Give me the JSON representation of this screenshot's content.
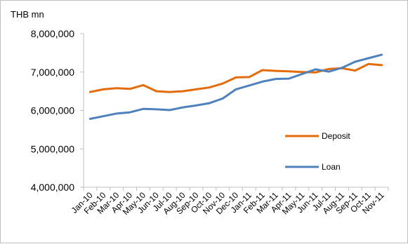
{
  "chart_data": {
    "type": "line",
    "unit_label": "THB mn",
    "categories": [
      "Jan-10",
      "Feb-10",
      "Mar-10",
      "Apr-10",
      "May-10",
      "Jun-10",
      "Jul-10",
      "Aug-10",
      "Sep-10",
      "Oct-10",
      "Nov-10",
      "Dec-10",
      "Jan-11",
      "Feb-11",
      "Mar-11",
      "Apr-11",
      "May-11",
      "Jun-11",
      "Jul-11",
      "Aug-11",
      "Sep-11",
      "Oct-11",
      "Nov-11"
    ],
    "y_ticks": [
      "4,000,000",
      "5,000,000",
      "6,000,000",
      "7,000,000",
      "8,000,000"
    ],
    "ylim": [
      4000000,
      8000000
    ],
    "grid": false,
    "legend_position": "right",
    "series": [
      {
        "name": "Deposit",
        "color": "#e36c0a",
        "values": [
          6480000,
          6550000,
          6580000,
          6560000,
          6660000,
          6500000,
          6480000,
          6500000,
          6550000,
          6600000,
          6700000,
          6860000,
          6870000,
          7050000,
          7030000,
          7020000,
          7000000,
          6990000,
          7080000,
          7100000,
          7040000,
          7210000,
          7180000
        ]
      },
      {
        "name": "Loan",
        "color": "#4f81bd",
        "values": [
          5780000,
          5850000,
          5920000,
          5950000,
          6040000,
          6030000,
          6010000,
          6080000,
          6130000,
          6190000,
          6310000,
          6550000,
          6650000,
          6750000,
          6820000,
          6830000,
          6950000,
          7070000,
          7010000,
          7110000,
          7270000,
          7360000,
          7450000
        ]
      }
    ]
  }
}
